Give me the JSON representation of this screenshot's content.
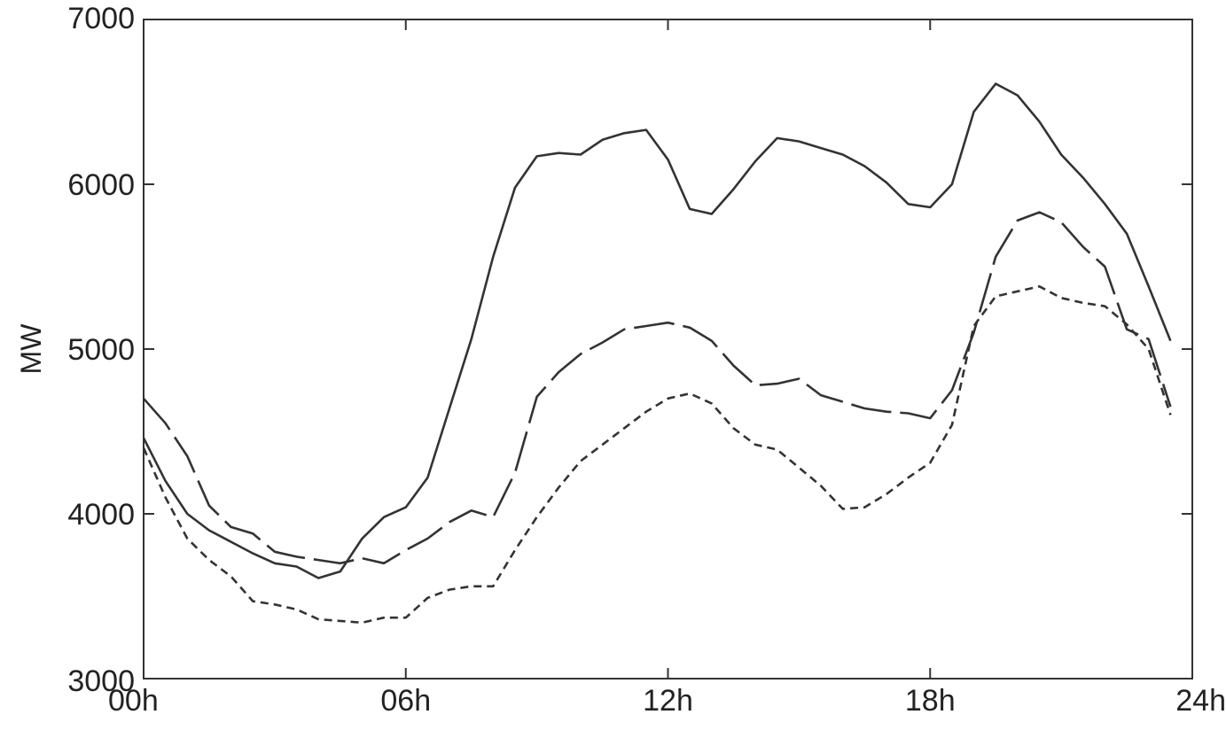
{
  "chart_data": {
    "type": "line",
    "title": "",
    "xlabel": "",
    "ylabel": "MW",
    "xlim": [
      0,
      24
    ],
    "ylim": [
      3000,
      7000
    ],
    "grid": false,
    "x_ticks": [
      0,
      6,
      12,
      18,
      24
    ],
    "x_tick_labels": [
      "00h",
      "06h",
      "12h",
      "18h",
      "24h"
    ],
    "y_ticks": [
      3000,
      4000,
      5000,
      6000,
      7000
    ],
    "y_tick_labels": [
      "3000",
      "4000",
      "5000",
      "6000",
      "7000"
    ],
    "line_color": "#333333",
    "series": [
      {
        "style": "solid",
        "x": [
          0,
          0.5,
          1,
          1.5,
          2,
          2.5,
          3,
          3.5,
          4,
          4.5,
          5,
          5.5,
          6,
          6.5,
          7,
          7.5,
          8,
          8.5,
          9,
          9.5,
          10,
          10.5,
          11,
          11.5,
          12,
          12.5,
          13,
          13.5,
          14,
          14.5,
          15,
          15.5,
          16,
          16.5,
          17,
          17.5,
          18,
          18.5,
          19,
          19.5,
          20,
          20.5,
          21,
          21.5,
          22,
          22.5,
          23,
          23.5
        ],
        "y": [
          4460,
          4200,
          4000,
          3900,
          3830,
          3760,
          3700,
          3680,
          3610,
          3650,
          3850,
          3980,
          4040,
          4220,
          4640,
          5060,
          5560,
          5980,
          6170,
          6190,
          6180,
          6270,
          6310,
          6330,
          6150,
          5850,
          5820,
          5970,
          6140,
          6280,
          6260,
          6220,
          6180,
          6110,
          6010,
          5880,
          5860,
          6000,
          6440,
          6610,
          6540,
          6380,
          6180,
          6040,
          5880,
          5700,
          5380,
          5050
        ]
      },
      {
        "style": "long-dash",
        "x": [
          0,
          0.5,
          1,
          1.5,
          2,
          2.5,
          3,
          3.5,
          4,
          4.5,
          5,
          5.5,
          6,
          6.5,
          7,
          7.5,
          8,
          8.5,
          9,
          9.5,
          10,
          10.5,
          11,
          11.5,
          12,
          12.5,
          13,
          13.5,
          14,
          14.5,
          15,
          15.5,
          16,
          16.5,
          17,
          17.5,
          18,
          18.5,
          19,
          19.5,
          20,
          20.5,
          21,
          21.5,
          22,
          22.5,
          23,
          23.5
        ],
        "y": [
          4700,
          4550,
          4350,
          4050,
          3920,
          3880,
          3770,
          3740,
          3720,
          3700,
          3730,
          3700,
          3780,
          3850,
          3950,
          4020,
          3980,
          4250,
          4710,
          4860,
          4970,
          5040,
          5120,
          5140,
          5160,
          5130,
          5050,
          4900,
          4780,
          4790,
          4820,
          4720,
          4680,
          4640,
          4620,
          4610,
          4580,
          4750,
          5100,
          5560,
          5780,
          5830,
          5770,
          5620,
          5500,
          5120,
          5060,
          4650
        ]
      },
      {
        "style": "short-dash",
        "x": [
          0,
          0.5,
          1,
          1.5,
          2,
          2.5,
          3,
          3.5,
          4,
          4.5,
          5,
          5.5,
          6,
          6.5,
          7,
          7.5,
          8,
          8.5,
          9,
          9.5,
          10,
          10.5,
          11,
          11.5,
          12,
          12.5,
          13,
          13.5,
          14,
          14.5,
          15,
          15.5,
          16,
          16.5,
          17,
          17.5,
          18,
          18.5,
          19,
          19.5,
          20,
          20.5,
          21,
          21.5,
          22,
          22.5,
          23,
          23.5
        ],
        "y": [
          4400,
          4100,
          3850,
          3720,
          3620,
          3470,
          3450,
          3420,
          3360,
          3350,
          3340,
          3370,
          3370,
          3490,
          3540,
          3560,
          3560,
          3780,
          3980,
          4160,
          4320,
          4420,
          4520,
          4620,
          4700,
          4730,
          4670,
          4520,
          4420,
          4390,
          4280,
          4170,
          4030,
          4040,
          4120,
          4220,
          4310,
          4540,
          5140,
          5320,
          5350,
          5380,
          5310,
          5280,
          5260,
          5150,
          5000,
          4600
        ]
      }
    ]
  }
}
